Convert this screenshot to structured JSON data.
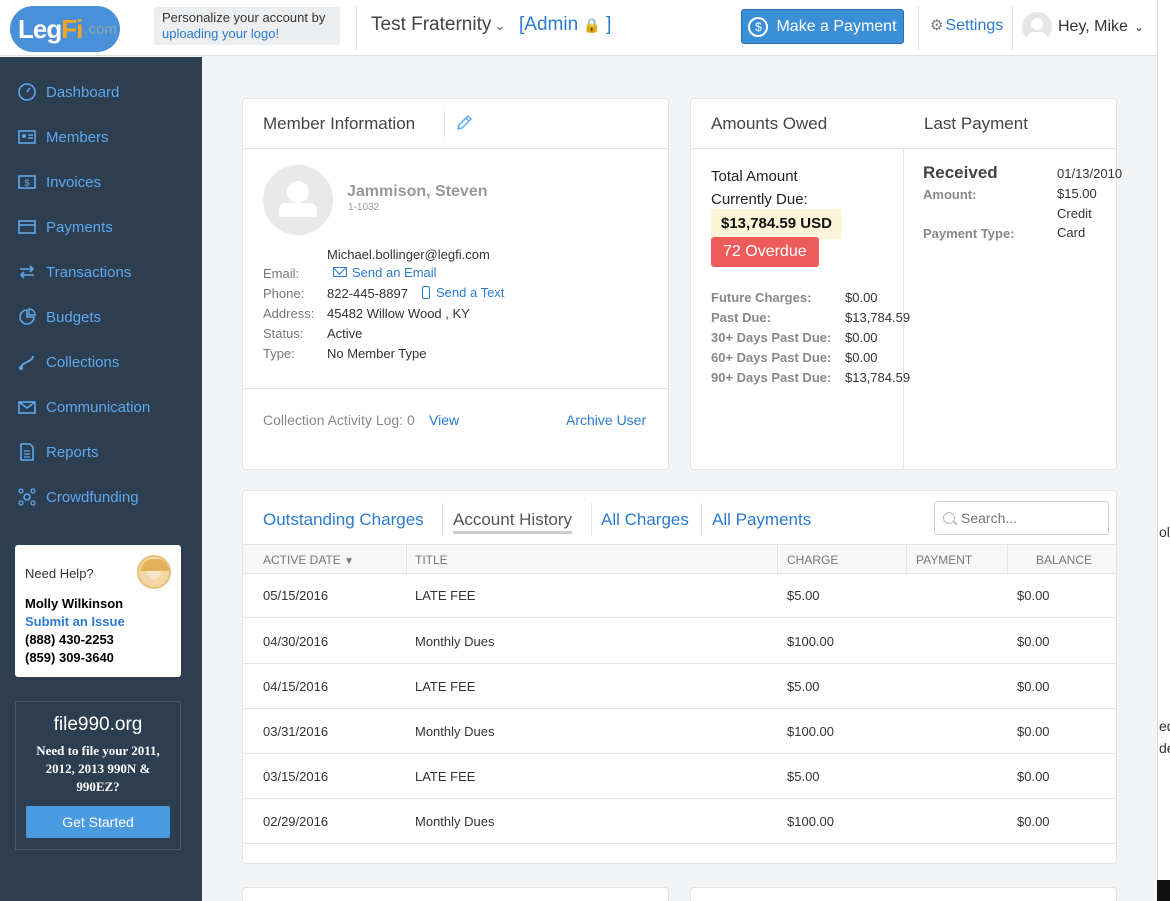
{
  "header": {
    "logo_main": "Leg",
    "logo_accent": "Fi",
    "logo_suffix": ".com",
    "personalize_text": "Personalize your account by",
    "personalize_link": "uploading your logo!",
    "org_name": "Test Fraternity",
    "admin_label": "[Admin",
    "admin_close": "]",
    "pay_button": "Make a Payment",
    "settings_label": "Settings",
    "user_greeting": "Hey, Mike"
  },
  "sidebar": {
    "items": [
      {
        "label": "Dashboard",
        "icon": "dashboard-icon"
      },
      {
        "label": "Members",
        "icon": "members-icon"
      },
      {
        "label": "Invoices",
        "icon": "invoices-icon"
      },
      {
        "label": "Payments",
        "icon": "payments-icon"
      },
      {
        "label": "Transactions",
        "icon": "transactions-icon"
      },
      {
        "label": "Budgets",
        "icon": "budgets-icon"
      },
      {
        "label": "Collections",
        "icon": "collections-icon"
      },
      {
        "label": "Communication",
        "icon": "communication-icon"
      },
      {
        "label": "Reports",
        "icon": "reports-icon"
      },
      {
        "label": "Crowdfunding",
        "icon": "crowdfunding-icon"
      }
    ],
    "help": {
      "title": "Need Help?",
      "name": "Molly Wilkinson",
      "link": "Submit an Issue",
      "phone1": "(888) 430-2253",
      "phone2": "(859) 309-3640"
    },
    "promo": {
      "title": "file990.org",
      "text": "Need to file your 2011, 2012, 2013 990N & 990EZ?",
      "button": "Get Started"
    }
  },
  "member": {
    "title": "Member Information",
    "name": "Jammison, Steven",
    "id": "1-1032",
    "email_value": "Michael.bollinger@legfi.com",
    "email_label": "Email:",
    "send_email": "Send an Email",
    "phone_label": "Phone:",
    "phone_value": "822-445-8897",
    "send_text": "Send a Text",
    "address_label": "Address:",
    "address_value": "45482 Willow Wood , KY",
    "status_label": "Status:",
    "status_value": "Active",
    "type_label": "Type:",
    "type_value": "No Member Type",
    "activity_log": "Collection Activity Log: 0",
    "view_link": "View",
    "archive_link": "Archive User"
  },
  "amounts": {
    "title": "Amounts Owed",
    "total_label_1": "Total Amount",
    "total_label_2": "Currently Due:",
    "total_amount": "$13,784.59 USD",
    "overdue_badge": "72 Overdue",
    "rows": [
      {
        "label": "Future Charges:",
        "value": "$0.00"
      },
      {
        "label": "Past Due:",
        "value": "$13,784.59"
      },
      {
        "label": "30+ Days Past Due:",
        "value": "$0.00"
      },
      {
        "label": "60+ Days Past Due:",
        "value": "$0.00"
      },
      {
        "label": "90+ Days Past Due:",
        "value": "$13,784.59"
      }
    ]
  },
  "last_payment": {
    "title": "Last Payment",
    "received_label": "Received",
    "received_value": "01/13/2010",
    "amount_label": "Amount:",
    "amount_value": "$15.00",
    "type_label": "Payment Type:",
    "type_value_1": "Credit",
    "type_value_2": "Card"
  },
  "tabs": {
    "items": [
      "Outstanding Charges",
      "Account History",
      "All Charges",
      "All Payments"
    ],
    "search_placeholder": "Search..."
  },
  "table": {
    "headers": [
      "ACTIVE DATE",
      "TITLE",
      "CHARGE",
      "PAYMENT",
      "BALANCE"
    ],
    "rows": [
      {
        "date": "05/15/2016",
        "title": "LATE FEE",
        "charge": "$5.00",
        "payment": "",
        "balance": "$0.00"
      },
      {
        "date": "04/30/2016",
        "title": "Monthly Dues",
        "charge": "$100.00",
        "payment": "",
        "balance": "$0.00"
      },
      {
        "date": "04/15/2016",
        "title": "LATE FEE",
        "charge": "$5.00",
        "payment": "",
        "balance": "$0.00"
      },
      {
        "date": "03/31/2016",
        "title": "Monthly Dues",
        "charge": "$100.00",
        "payment": "",
        "balance": "$0.00"
      },
      {
        "date": "03/15/2016",
        "title": "LATE FEE",
        "charge": "$5.00",
        "payment": "",
        "balance": "$0.00"
      },
      {
        "date": "02/29/2016",
        "title": "Monthly Dues",
        "charge": "$100.00",
        "payment": "",
        "balance": "$0.00"
      }
    ]
  },
  "edge": {
    "frag1": "oll",
    "frag2": "ede",
    "frag3": "de"
  },
  "colors": {
    "accent": "#2b7bcf",
    "sidebar_bg": "#2d3e50",
    "overdue": "#ed5b5b",
    "pay_button": "#3b8fd6"
  }
}
